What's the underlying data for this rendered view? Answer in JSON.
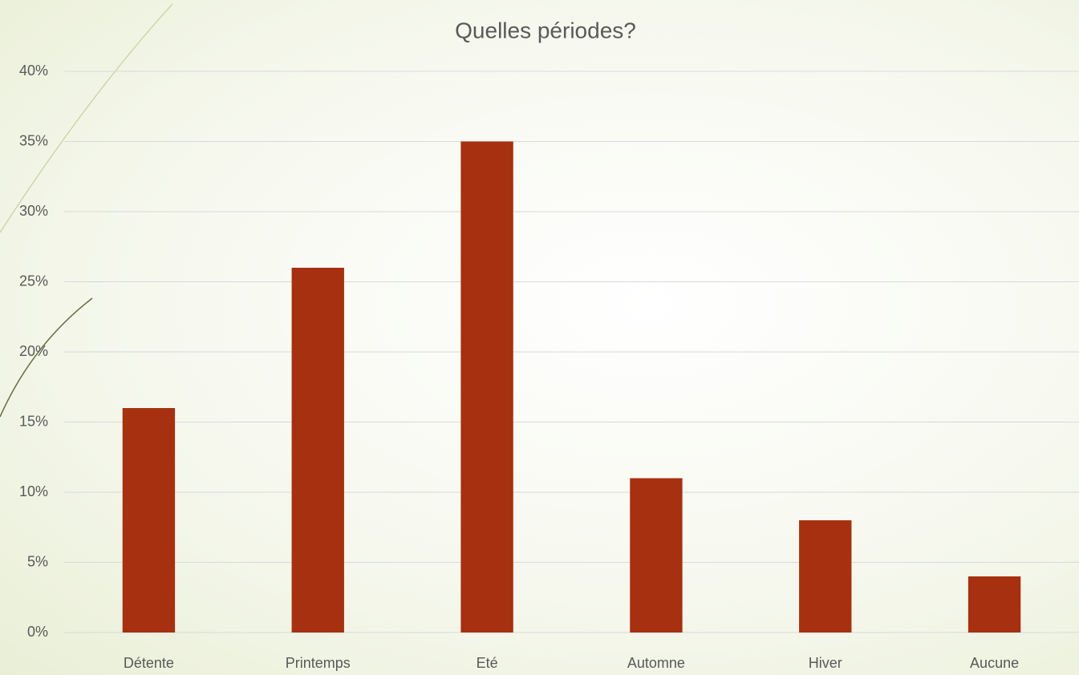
{
  "chart_data": {
    "type": "bar",
    "title": "Quelles périodes?",
    "categories": [
      "Détente",
      "Printemps",
      "Eté",
      "Automne",
      "Hiver",
      "Aucune"
    ],
    "values": [
      16,
      26,
      35,
      11,
      8,
      4
    ],
    "color": "#a63010",
    "ylim": [
      0,
      40
    ],
    "yticks": [
      {
        "value": 0,
        "label": "0%"
      },
      {
        "value": 5,
        "label": "5%"
      },
      {
        "value": 10,
        "label": "10%"
      },
      {
        "value": 15,
        "label": "15%"
      },
      {
        "value": 20,
        "label": "20%"
      },
      {
        "value": 25,
        "label": "25%"
      },
      {
        "value": 30,
        "label": "30%"
      },
      {
        "value": 35,
        "label": "35%"
      },
      {
        "value": 40,
        "label": "40%"
      }
    ],
    "grid": true
  }
}
